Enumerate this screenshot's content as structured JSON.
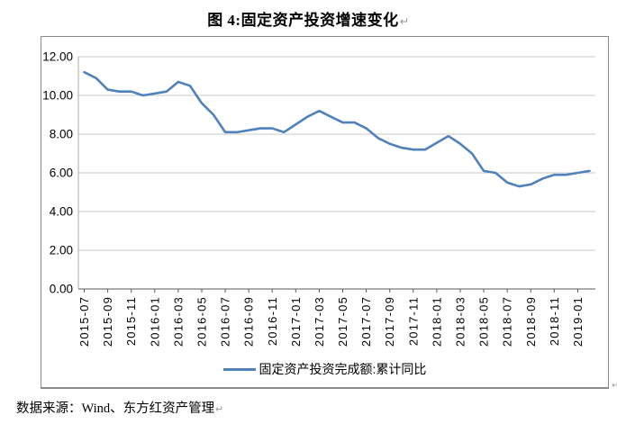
{
  "title": {
    "text": "图 4:固定资产投资增速变化",
    "return_mark": "↵"
  },
  "source": {
    "text": "数据来源：Wind、东方红资产管理",
    "return_mark": "↵"
  },
  "chart_return_mark": "↵",
  "colors": {
    "line": "#4F81BD",
    "gridline": "#C9C9C9",
    "y_axis": "#ABABAB",
    "x_axis": "#595959",
    "tick": "#595959",
    "chart_border": "#8A8A8A",
    "text": "#000000",
    "return_mark": "#9A9A9A"
  },
  "chart_data": {
    "type": "line",
    "title": "图 4:固定资产投资增速变化",
    "xlabel": "",
    "ylabel": "",
    "ylim": [
      0,
      12
    ],
    "ytick_step": 2,
    "ytick_decimals": 2,
    "xtick_every": 2,
    "grid": "horizontal",
    "legend_position": "bottom",
    "x": [
      "2015-07",
      "2015-08",
      "2015-09",
      "2015-10",
      "2015-11",
      "2015-12",
      "2016-01",
      "2016-02",
      "2016-03",
      "2016-04",
      "2016-05",
      "2016-06",
      "2016-07",
      "2016-08",
      "2016-09",
      "2016-10",
      "2016-11",
      "2016-12",
      "2017-01",
      "2017-02",
      "2017-03",
      "2017-04",
      "2017-05",
      "2017-06",
      "2017-07",
      "2017-08",
      "2017-09",
      "2017-10",
      "2017-11",
      "2017-12",
      "2018-01",
      "2018-02",
      "2018-03",
      "2018-04",
      "2018-05",
      "2018-06",
      "2018-07",
      "2018-08",
      "2018-09",
      "2018-10",
      "2018-11",
      "2018-12",
      "2019-01",
      "2019-02"
    ],
    "series": [
      {
        "name": "固定资产投资完成额:累计同比",
        "color": "#4F81BD",
        "values": [
          11.2,
          10.9,
          10.3,
          10.2,
          10.2,
          10.0,
          10.1,
          10.2,
          10.7,
          10.5,
          9.6,
          9.0,
          8.1,
          8.1,
          8.2,
          8.3,
          8.3,
          8.1,
          8.5,
          8.9,
          9.2,
          8.9,
          8.6,
          8.6,
          8.3,
          7.8,
          7.5,
          7.3,
          7.2,
          7.2,
          7.55,
          7.9,
          7.5,
          7.0,
          6.1,
          6.0,
          5.5,
          5.3,
          5.4,
          5.7,
          5.9,
          5.9,
          6.0,
          6.1
        ]
      }
    ]
  }
}
